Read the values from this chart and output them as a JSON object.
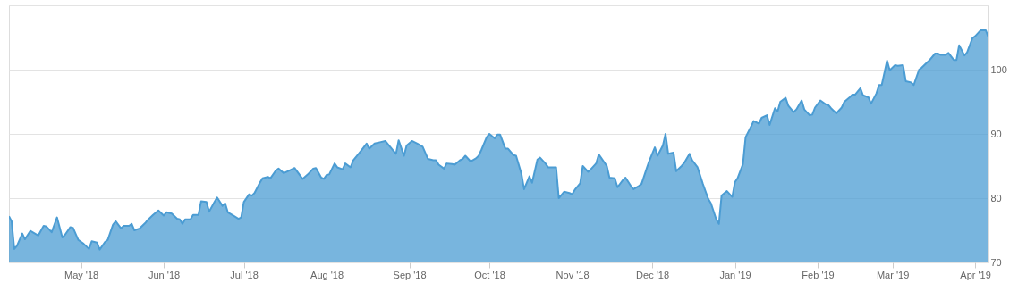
{
  "chart_data": {
    "type": "area",
    "x": [
      "2018-04-04",
      "2018-04-05",
      "2018-04-06",
      "2018-04-07",
      "2018-04-09",
      "2018-04-10",
      "2018-04-12",
      "2018-04-15",
      "2018-04-17",
      "2018-04-18",
      "2018-04-20",
      "2018-04-22",
      "2018-04-24",
      "2018-04-25",
      "2018-04-27",
      "2018-04-28",
      "2018-04-30",
      "2018-05-02",
      "2018-05-04",
      "2018-05-05",
      "2018-05-07",
      "2018-05-08",
      "2018-05-10",
      "2018-05-11",
      "2018-05-13",
      "2018-05-14",
      "2018-05-16",
      "2018-05-17",
      "2018-05-19",
      "2018-05-20",
      "2018-05-21",
      "2018-05-23",
      "2018-05-25",
      "2018-05-26",
      "2018-05-28",
      "2018-05-30",
      "2018-06-01",
      "2018-06-02",
      "2018-06-04",
      "2018-06-06",
      "2018-06-07",
      "2018-06-08",
      "2018-06-09",
      "2018-06-11",
      "2018-06-12",
      "2018-06-14",
      "2018-06-15",
      "2018-06-17",
      "2018-06-18",
      "2018-06-20",
      "2018-06-21",
      "2018-06-23",
      "2018-06-24",
      "2018-06-25",
      "2018-06-27",
      "2018-06-29",
      "2018-06-30",
      "2018-07-01",
      "2018-07-03",
      "2018-07-04",
      "2018-07-05",
      "2018-07-07",
      "2018-07-08",
      "2018-07-10",
      "2018-07-11",
      "2018-07-13",
      "2018-07-14",
      "2018-07-16",
      "2018-07-18",
      "2018-07-20",
      "2018-07-23",
      "2018-07-25",
      "2018-07-27",
      "2018-07-28",
      "2018-07-30",
      "2018-07-31",
      "2018-08-01",
      "2018-08-02",
      "2018-08-04",
      "2018-08-05",
      "2018-08-07",
      "2018-08-08",
      "2018-08-10",
      "2018-08-11",
      "2018-08-13",
      "2018-08-14",
      "2018-08-16",
      "2018-08-17",
      "2018-08-19",
      "2018-08-21",
      "2018-08-23",
      "2018-08-25",
      "2018-08-27",
      "2018-08-28",
      "2018-08-30",
      "2018-08-31",
      "2018-09-02",
      "2018-09-04",
      "2018-09-06",
      "2018-09-08",
      "2018-09-10",
      "2018-09-11",
      "2018-09-12",
      "2018-09-14",
      "2018-09-15",
      "2018-09-17",
      "2018-09-18",
      "2018-09-20",
      "2018-09-21",
      "2018-09-22",
      "2018-09-24",
      "2018-09-26",
      "2018-09-27",
      "2018-09-28",
      "2018-09-30",
      "2018-10-01",
      "2018-10-03",
      "2018-10-04",
      "2018-10-05",
      "2018-10-07",
      "2018-10-08",
      "2018-10-10",
      "2018-10-11",
      "2018-10-13",
      "2018-10-14",
      "2018-10-16",
      "2018-10-17",
      "2018-10-19",
      "2018-10-20",
      "2018-10-22",
      "2018-10-23",
      "2018-10-26",
      "2018-10-27",
      "2018-10-29",
      "2018-10-31",
      "2018-11-01",
      "2018-11-02",
      "2018-11-04",
      "2018-11-05",
      "2018-11-07",
      "2018-11-08",
      "2018-11-10",
      "2018-11-11",
      "2018-11-12",
      "2018-11-14",
      "2018-11-15",
      "2018-11-17",
      "2018-11-18",
      "2018-11-20",
      "2018-11-21",
      "2018-11-23",
      "2018-11-24",
      "2018-11-26",
      "2018-11-27",
      "2018-11-29",
      "2018-11-30",
      "2018-12-02",
      "2018-12-03",
      "2018-12-05",
      "2018-12-06",
      "2018-12-07",
      "2018-12-09",
      "2018-12-10",
      "2018-12-12",
      "2018-12-13",
      "2018-12-15",
      "2018-12-16",
      "2018-12-18",
      "2018-12-20",
      "2018-12-22",
      "2018-12-23",
      "2018-12-25",
      "2018-12-26",
      "2018-12-27",
      "2018-12-29",
      "2018-12-31",
      "2019-01-01",
      "2019-01-02",
      "2019-01-04",
      "2019-01-05",
      "2019-01-07",
      "2019-01-08",
      "2019-01-10",
      "2019-01-11",
      "2019-01-13",
      "2019-01-14",
      "2019-01-16",
      "2019-01-17",
      "2019-01-18",
      "2019-01-20",
      "2019-01-21",
      "2019-01-23",
      "2019-01-24",
      "2019-01-26",
      "2019-01-27",
      "2019-01-29",
      "2019-01-30",
      "2019-01-31",
      "2019-02-02",
      "2019-02-04",
      "2019-02-05",
      "2019-02-06",
      "2019-02-08",
      "2019-02-10",
      "2019-02-11",
      "2019-02-13",
      "2019-02-14",
      "2019-02-15",
      "2019-02-17",
      "2019-02-18",
      "2019-02-20",
      "2019-02-21",
      "2019-02-23",
      "2019-02-24",
      "2019-02-25",
      "2019-02-27",
      "2019-02-28",
      "2019-03-02",
      "2019-03-03",
      "2019-03-05",
      "2019-03-06",
      "2019-03-08",
      "2019-03-09",
      "2019-03-11",
      "2019-03-12",
      "2019-03-14",
      "2019-03-15",
      "2019-03-17",
      "2019-03-18",
      "2019-03-19",
      "2019-03-21",
      "2019-03-22",
      "2019-03-24",
      "2019-03-25",
      "2019-03-26",
      "2019-03-28",
      "2019-03-29",
      "2019-03-31",
      "2019-04-01",
      "2019-04-03",
      "2019-04-05",
      "2019-04-06"
    ],
    "series": [
      {
        "color": "#4b9cd3",
        "values": [
          77.2,
          76.4,
          72.1,
          72.6,
          74.5,
          73.6,
          74.9,
          74.2,
          75.7,
          75.6,
          74.7,
          77.0,
          73.9,
          74.3,
          75.5,
          75.4,
          73.5,
          72.9,
          72.1,
          73.3,
          73.1,
          72.0,
          73.2,
          73.5,
          75.9,
          76.4,
          75.3,
          75.7,
          75.7,
          76.0,
          75.0,
          75.3,
          76.1,
          76.6,
          77.4,
          78.1,
          77.3,
          77.8,
          77.6,
          76.8,
          76.7,
          76.0,
          76.7,
          76.7,
          77.4,
          77.4,
          79.5,
          79.4,
          77.9,
          79.4,
          80.1,
          78.8,
          79.2,
          77.8,
          77.3,
          76.8,
          77.0,
          79.4,
          80.6,
          80.4,
          80.8,
          82.4,
          83.1,
          83.3,
          83.1,
          84.3,
          84.6,
          83.9,
          84.3,
          84.7,
          83.0,
          83.7,
          84.6,
          84.7,
          83.2,
          83.0,
          83.6,
          83.7,
          85.4,
          84.8,
          84.5,
          85.4,
          84.8,
          85.9,
          86.9,
          87.4,
          88.5,
          87.7,
          88.5,
          88.7,
          88.9,
          87.9,
          86.9,
          89.0,
          86.6,
          88.2,
          88.9,
          88.5,
          88.0,
          86.1,
          85.9,
          85.9,
          85.2,
          84.6,
          85.4,
          85.3,
          85.2,
          85.9,
          86.1,
          86.6,
          85.7,
          86.2,
          86.6,
          87.5,
          89.5,
          90.0,
          89.3,
          89.9,
          89.9,
          87.7,
          87.7,
          86.7,
          86.6,
          83.8,
          81.4,
          83.4,
          82.4,
          86.0,
          86.3,
          85.4,
          84.8,
          84.8,
          80.0,
          81.0,
          80.8,
          80.6,
          81.3,
          82.3,
          85.0,
          84.1,
          84.5,
          85.4,
          86.8,
          86.2,
          85.0,
          83.2,
          83.1,
          81.7,
          82.8,
          83.2,
          81.9,
          81.4,
          81.9,
          82.2,
          84.7,
          85.9,
          87.9,
          86.6,
          88.2,
          90.0,
          86.9,
          87.1,
          84.2,
          85.0,
          85.5,
          86.9,
          85.9,
          84.8,
          82.2,
          79.9,
          79.2,
          76.7,
          76.0,
          80.4,
          81.1,
          80.2,
          82.5,
          83.1,
          85.3,
          89.5,
          91.1,
          92.0,
          91.6,
          92.5,
          92.9,
          91.4,
          94.0,
          93.5,
          95.0,
          95.6,
          94.4,
          93.4,
          93.8,
          95.2,
          93.8,
          92.9,
          93.0,
          94.1,
          95.2,
          94.6,
          94.5,
          94.0,
          93.2,
          94.1,
          95.0,
          95.7,
          96.1,
          96.1,
          97.1,
          96.0,
          95.7,
          94.7,
          96.3,
          97.6,
          97.6,
          101.4,
          99.9,
          100.7,
          100.6,
          100.7,
          98.2,
          98.0,
          97.6,
          100.0,
          100.3,
          101.1,
          101.5,
          102.5,
          102.5,
          102.3,
          102.3,
          102.6,
          101.5,
          101.5,
          103.8,
          102.2,
          102.7,
          104.9,
          105.2,
          106.1,
          106.1,
          105.0
        ]
      }
    ],
    "xlim": [
      "2018-04-04",
      "2019-04-06"
    ],
    "xticks": [
      {
        "value": "2018-05-01",
        "label": "May '18"
      },
      {
        "value": "2018-06-01",
        "label": "Jun '18"
      },
      {
        "value": "2018-07-01",
        "label": "Jul '18"
      },
      {
        "value": "2018-08-01",
        "label": "Aug '18"
      },
      {
        "value": "2018-09-01",
        "label": "Sep '18"
      },
      {
        "value": "2018-10-01",
        "label": "Oct '18"
      },
      {
        "value": "2018-11-01",
        "label": "Nov '18"
      },
      {
        "value": "2018-12-01",
        "label": "Dec '18"
      },
      {
        "value": "2019-01-01",
        "label": "Jan '19"
      },
      {
        "value": "2019-02-01",
        "label": "Feb '19"
      },
      {
        "value": "2019-03-01",
        "label": "Mar '19"
      },
      {
        "value": "2019-04-01",
        "label": "Apr '19"
      }
    ],
    "ylim": [
      70,
      110
    ],
    "yticks": [
      70,
      80,
      90,
      100,
      {
        "value": 110,
        "label": null
      }
    ],
    "grid": "y",
    "line_style": "solid"
  }
}
